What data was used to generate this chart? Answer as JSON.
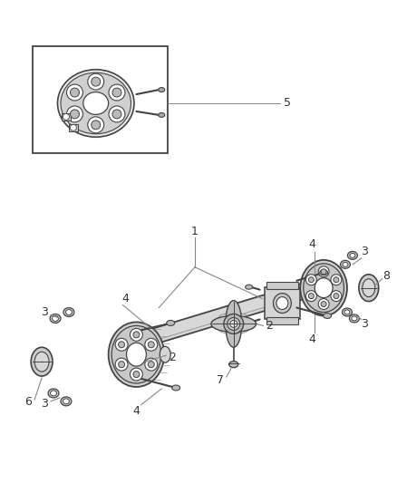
{
  "background_color": "#ffffff",
  "fig_width": 4.38,
  "fig_height": 5.33,
  "dpi": 100,
  "line_color": "#444444",
  "shaft_color": "#c8c8c8",
  "coupling_color": "#aaaaaa",
  "dark_line": "#333333"
}
